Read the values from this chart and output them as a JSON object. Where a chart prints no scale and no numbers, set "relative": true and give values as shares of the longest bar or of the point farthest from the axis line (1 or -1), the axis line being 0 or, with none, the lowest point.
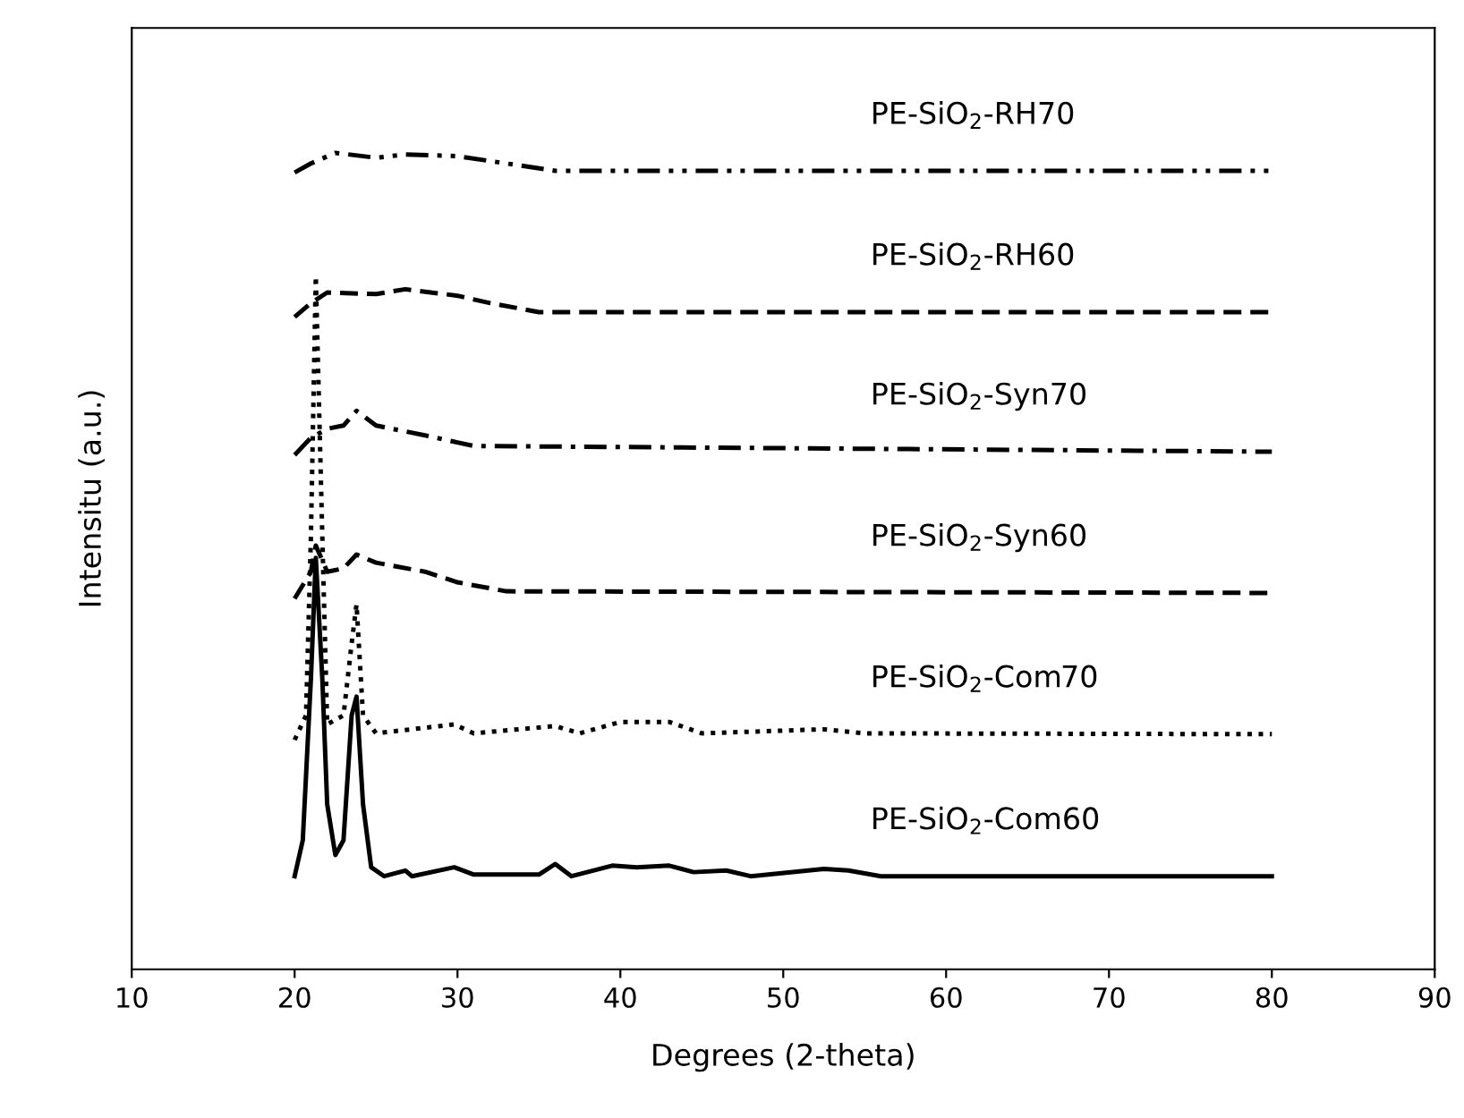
{
  "chart_data": {
    "type": "line",
    "relative": true,
    "xlabel": "Degrees (2-theta)",
    "ylabel": "Intensitu (a.u.)",
    "xlim": [
      10,
      90
    ],
    "xticks": [
      10,
      20,
      30,
      40,
      50,
      60,
      70,
      80,
      90
    ],
    "grid": false,
    "legend": false,
    "tick_labels": "x",
    "series": [
      {
        "name": "PE-SiO$_{2}$-Com60",
        "color": "#000000",
        "line_style": "solid",
        "x": [
          20,
          20.5,
          21.0,
          21.3,
          21.7,
          22.0,
          22.5,
          23.0,
          23.5,
          23.8,
          24.2,
          24.7,
          25.5,
          26.8,
          27.2,
          29.8,
          31,
          35,
          36,
          37,
          39.5,
          41,
          43,
          44.5,
          46.5,
          48,
          52.5,
          54,
          56,
          80
        ],
        "values": [
          0.114,
          0.158,
          0.356,
          0.504,
          0.356,
          0.202,
          0.14,
          0.158,
          0.311,
          0.334,
          0.202,
          0.125,
          0.114,
          0.121,
          0.114,
          0.125,
          0.116,
          0.116,
          0.129,
          0.114,
          0.127,
          0.125,
          0.127,
          0.119,
          0.121,
          0.114,
          0.123,
          0.121,
          0.114,
          0.114
        ]
      },
      {
        "name": "PE-SiO$_{2}$-Com70",
        "color": "#000000",
        "line_style": "dotted",
        "x": [
          20,
          20.7,
          21.0,
          21.3,
          21.7,
          22.0,
          23.0,
          23.5,
          23.8,
          24.2,
          25,
          29.8,
          31,
          36,
          37.5,
          40,
          43,
          45,
          52.5,
          55,
          80
        ],
        "values": [
          0.281,
          0.311,
          0.53,
          0.849,
          0.53,
          0.3,
          0.311,
          0.399,
          0.447,
          0.311,
          0.289,
          0.3,
          0.289,
          0.298,
          0.289,
          0.303,
          0.303,
          0.289,
          0.294,
          0.289,
          0.288
        ]
      },
      {
        "name": "PE-SiO$_{2}$-Syn60",
        "color": "#000000",
        "line_style": "dashed",
        "x": [
          20,
          21,
          21.3,
          22,
          23,
          23.8,
          25,
          28,
          30,
          33,
          80
        ],
        "values": [
          0.454,
          0.487,
          0.519,
          0.487,
          0.491,
          0.508,
          0.498,
          0.487,
          0.474,
          0.463,
          0.461
        ]
      },
      {
        "name": "PE-SiO$_{2}$-Syn70",
        "color": "#000000",
        "line_style": "dashdot",
        "x": [
          20,
          21,
          22,
          23,
          23.8,
          25,
          28,
          31,
          80
        ],
        "values": [
          0.63,
          0.651,
          0.662,
          0.666,
          0.684,
          0.666,
          0.654,
          0.641,
          0.634
        ]
      },
      {
        "name": "PE-SiO$_{2}$-RH60",
        "color": "#000000",
        "line_style": "dashed",
        "x": [
          20,
          21,
          22,
          25,
          26.8,
          30,
          32,
          35,
          80
        ],
        "values": [
          0.799,
          0.816,
          0.829,
          0.827,
          0.833,
          0.825,
          0.816,
          0.805,
          0.805
        ]
      },
      {
        "name": "PE-SiO$_{2}$-RH70",
        "color": "#000000",
        "line_style": "dashdotdot",
        "x": [
          20,
          21,
          22.5,
          25,
          26.8,
          30,
          33,
          36,
          80
        ],
        "values": [
          0.976,
          0.987,
          1.0,
          0.994,
          0.998,
          0.996,
          0.987,
          0.978,
          0.978
        ]
      }
    ]
  }
}
